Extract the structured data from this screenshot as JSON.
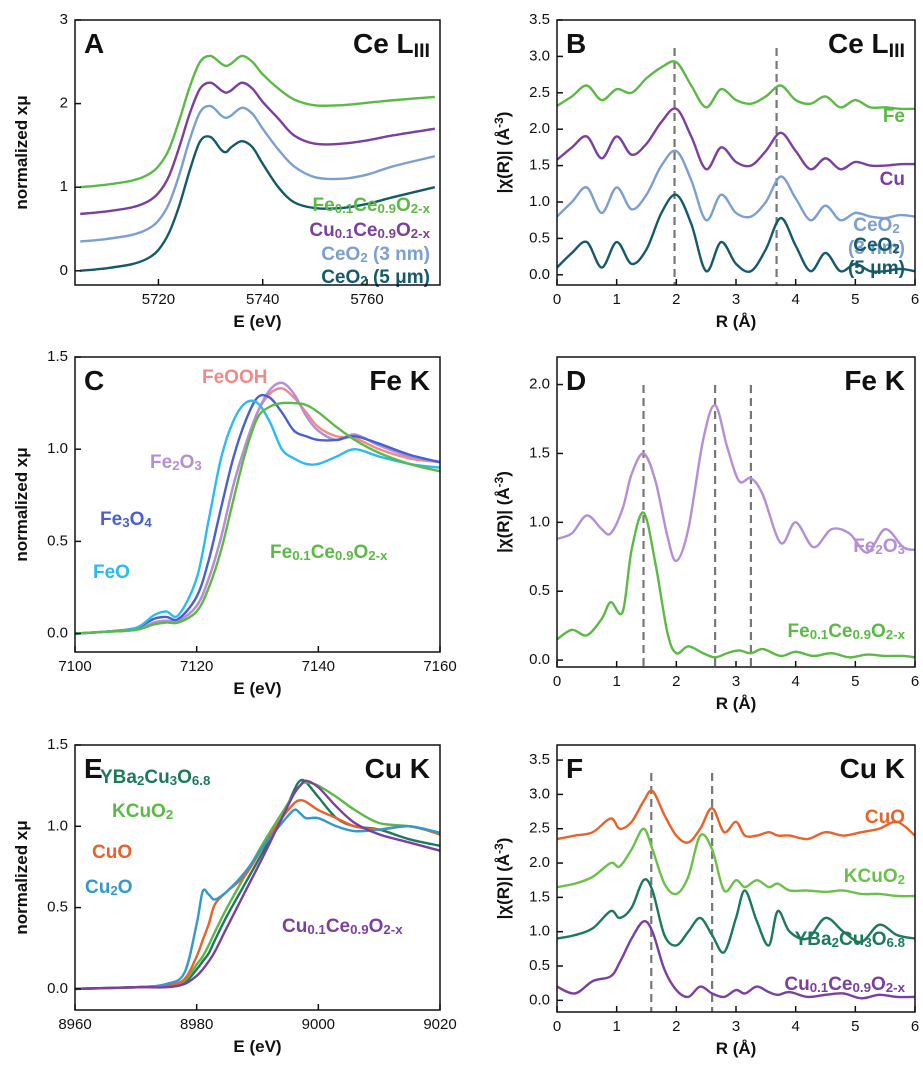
{
  "chart_data": [
    {
      "type": "line",
      "panel_label": "A",
      "title": "Ce LIII",
      "xlabel": "E (eV)",
      "ylabel": "normalized xμ",
      "xlim": [
        5704,
        5774
      ],
      "xticks": [
        5720,
        5740,
        5760
      ],
      "ylim": [
        -0.17,
        3
      ],
      "yticks": [
        0,
        1,
        2,
        3
      ],
      "x": [
        5705,
        5710,
        5715,
        5718,
        5720,
        5722,
        5724,
        5726,
        5728,
        5730,
        5732,
        5733,
        5734,
        5736,
        5738,
        5740,
        5743,
        5746,
        5750,
        5755,
        5760,
        5765,
        5773
      ],
      "series": [
        {
          "name": "Fe0.1Ce0.9O2-x",
          "color": "#5cb946",
          "values": [
            1.0,
            1.03,
            1.08,
            1.15,
            1.25,
            1.45,
            1.8,
            2.2,
            2.5,
            2.57,
            2.48,
            2.45,
            2.48,
            2.57,
            2.5,
            2.35,
            2.18,
            2.05,
            1.98,
            1.98,
            2.01,
            2.04,
            2.08
          ]
        },
        {
          "name": "Cu0.1Ce0.9O2-x",
          "color": "#7b3fa0",
          "values": [
            0.68,
            0.71,
            0.76,
            0.83,
            0.93,
            1.13,
            1.48,
            1.88,
            2.18,
            2.25,
            2.16,
            2.13,
            2.16,
            2.25,
            2.18,
            2.02,
            1.82,
            1.62,
            1.52,
            1.52,
            1.56,
            1.62,
            1.7
          ]
        },
        {
          "name": "CeO2 (3 nm)",
          "color": "#7b9fd0",
          "values": [
            0.35,
            0.38,
            0.43,
            0.5,
            0.6,
            0.8,
            1.15,
            1.57,
            1.9,
            1.97,
            1.86,
            1.83,
            1.86,
            1.95,
            1.88,
            1.7,
            1.45,
            1.25,
            1.12,
            1.1,
            1.15,
            1.25,
            1.37
          ]
        },
        {
          "name": "CeO2 (5 μm)",
          "color": "#155a6a",
          "values": [
            0.0,
            0.03,
            0.08,
            0.15,
            0.25,
            0.45,
            0.78,
            1.2,
            1.55,
            1.6,
            1.45,
            1.42,
            1.48,
            1.55,
            1.48,
            1.28,
            1.0,
            0.82,
            0.75,
            0.75,
            0.8,
            0.88,
            1.0
          ]
        }
      ]
    },
    {
      "type": "line",
      "panel_label": "B",
      "title": "Ce LIII",
      "xlabel": "R (Å)",
      "ylabel": "|χ(R)| (Å-3)",
      "xlim": [
        0,
        6
      ],
      "xticks": [
        0,
        1,
        2,
        3,
        4,
        5,
        6
      ],
      "ylim": [
        -0.14,
        3.5
      ],
      "yticks": [
        {
          "value": 0,
          "label": "0.0"
        },
        0.5,
        {
          "value": 1,
          "label": "1.0"
        },
        1.5,
        {
          "value": 2,
          "label": "2.0"
        },
        2.5,
        {
          "value": 3,
          "label": "3.0"
        },
        3.5
      ],
      "reference_lines": [
        1.97,
        3.68
      ],
      "x": [
        0,
        0.25,
        0.5,
        0.75,
        1,
        1.25,
        1.5,
        1.75,
        2,
        2.25,
        2.5,
        2.75,
        3,
        3.25,
        3.5,
        3.75,
        4,
        4.25,
        4.5,
        4.75,
        5,
        5.25,
        5.5,
        5.75,
        6
      ],
      "series": [
        {
          "name": "Fe",
          "color": "#5cb946",
          "values": [
            2.32,
            2.45,
            2.6,
            2.4,
            2.55,
            2.5,
            2.7,
            2.85,
            2.92,
            2.6,
            2.3,
            2.55,
            2.4,
            2.35,
            2.45,
            2.6,
            2.4,
            2.35,
            2.45,
            2.3,
            2.4,
            2.3,
            2.3,
            2.28,
            2.28
          ]
        },
        {
          "name": "Cu",
          "color": "#7b3fa0",
          "values": [
            1.58,
            1.75,
            1.9,
            1.6,
            1.9,
            1.65,
            1.8,
            2.1,
            2.28,
            1.9,
            1.45,
            1.75,
            1.55,
            1.5,
            1.7,
            1.95,
            1.7,
            1.45,
            1.6,
            1.45,
            1.55,
            1.5,
            1.5,
            1.52,
            1.52
          ]
        },
        {
          "name": "CeO2 (3 nm)",
          "color": "#7b9fd0",
          "values": [
            0.8,
            1.0,
            1.2,
            0.85,
            1.2,
            0.9,
            1.1,
            1.5,
            1.7,
            1.3,
            0.75,
            1.1,
            0.85,
            0.8,
            1.0,
            1.35,
            1.05,
            0.75,
            0.95,
            0.75,
            0.85,
            0.8,
            0.78,
            0.82,
            0.8
          ]
        },
        {
          "name": "CeO2 (5 μm)",
          "color": "#155a6a",
          "values": [
            0.1,
            0.3,
            0.45,
            0.1,
            0.45,
            0.15,
            0.35,
            0.85,
            1.1,
            0.7,
            0.05,
            0.45,
            0.15,
            0.05,
            0.35,
            0.78,
            0.4,
            0.05,
            0.3,
            0.05,
            0.15,
            0.05,
            0.05,
            0.08,
            0.05
          ]
        }
      ]
    },
    {
      "type": "line",
      "panel_label": "C",
      "title": "Fe K",
      "xlabel": "E (eV)",
      "ylabel": "normalized xμ",
      "xlim": [
        7100,
        7160
      ],
      "xticks": [
        7100,
        7120,
        7140,
        7160
      ],
      "ylim": [
        -0.1,
        1.5
      ],
      "yticks": [
        {
          "value": 0,
          "label": "0.0"
        },
        0.5,
        {
          "value": 1,
          "label": "1.0"
        },
        1.5
      ],
      "x": [
        7100,
        7105,
        7110,
        7113,
        7115,
        7117,
        7120,
        7122,
        7124,
        7126,
        7128,
        7130,
        7132,
        7134,
        7136,
        7138,
        7140,
        7143,
        7146,
        7150,
        7155,
        7160
      ],
      "series": [
        {
          "name": "FeOOH",
          "color": "#f08a8a",
          "values": [
            0,
            0.01,
            0.02,
            0.06,
            0.07,
            0.07,
            0.15,
            0.3,
            0.52,
            0.8,
            1.02,
            1.2,
            1.3,
            1.33,
            1.28,
            1.2,
            1.12,
            1.07,
            1.06,
            1.0,
            0.95,
            0.93
          ]
        },
        {
          "name": "Fe2O3",
          "color": "#b38fd6",
          "values": [
            0,
            0.01,
            0.02,
            0.06,
            0.07,
            0.07,
            0.15,
            0.3,
            0.52,
            0.8,
            1.02,
            1.2,
            1.32,
            1.36,
            1.3,
            1.18,
            1.1,
            1.05,
            1.08,
            1.02,
            0.96,
            0.93
          ]
        },
        {
          "name": "Fe3O4",
          "color": "#4a5fd0",
          "values": [
            0,
            0.01,
            0.03,
            0.08,
            0.09,
            0.08,
            0.2,
            0.4,
            0.68,
            0.95,
            1.15,
            1.28,
            1.28,
            1.2,
            1.1,
            1.07,
            1.05,
            1.05,
            1.07,
            1.03,
            0.97,
            0.93
          ]
        },
        {
          "name": "FeO",
          "color": "#2bbbf0",
          "values": [
            0,
            0.01,
            0.03,
            0.1,
            0.12,
            0.1,
            0.3,
            0.62,
            0.95,
            1.15,
            1.25,
            1.25,
            1.15,
            1.0,
            0.95,
            0.92,
            0.92,
            0.96,
            1.0,
            0.96,
            0.92,
            0.9
          ]
        },
        {
          "name": "Fe0.1Ce0.9O2-x",
          "color": "#5cb946",
          "values": [
            0,
            0.01,
            0.02,
            0.05,
            0.06,
            0.06,
            0.12,
            0.25,
            0.45,
            0.72,
            0.98,
            1.17,
            1.23,
            1.25,
            1.25,
            1.24,
            1.2,
            1.12,
            1.05,
            0.98,
            0.92,
            0.88
          ]
        }
      ]
    },
    {
      "type": "line",
      "panel_label": "D",
      "title": "Fe K",
      "xlabel": "R (Å)",
      "ylabel": "|χ(R)| (Å-3)",
      "xlim": [
        0,
        6
      ],
      "xticks": [
        0,
        1,
        2,
        3,
        4,
        5,
        6
      ],
      "ylim": [
        -0.05,
        2.2
      ],
      "yticks": [
        {
          "value": 0,
          "label": "0.0"
        },
        0.5,
        {
          "value": 1,
          "label": "1.0"
        },
        1.5,
        {
          "value": 2,
          "label": "2.0"
        }
      ],
      "reference_lines": [
        1.45,
        2.65,
        3.25
      ],
      "x": [
        0,
        0.25,
        0.5,
        0.75,
        0.9,
        1.1,
        1.25,
        1.45,
        1.65,
        1.85,
        2.0,
        2.2,
        2.45,
        2.65,
        2.85,
        3.05,
        3.25,
        3.45,
        3.75,
        4.0,
        4.3,
        4.6,
        4.9,
        5.2,
        5.5,
        5.8,
        6.0
      ],
      "series": [
        {
          "name": "Fe2O3",
          "color": "#b38fd6",
          "values": [
            0.88,
            0.92,
            1.05,
            0.95,
            0.92,
            1.1,
            1.35,
            1.5,
            1.3,
            0.9,
            0.72,
            0.95,
            1.6,
            1.85,
            1.55,
            1.3,
            1.32,
            1.2,
            0.85,
            1.0,
            0.82,
            0.95,
            0.92,
            0.78,
            0.95,
            0.82,
            0.8
          ]
        },
        {
          "name": "Fe0.1Ce0.9O2-x",
          "color": "#5cb946",
          "values": [
            0.15,
            0.22,
            0.18,
            0.3,
            0.42,
            0.35,
            0.8,
            1.07,
            0.7,
            0.2,
            0.05,
            0.1,
            0.05,
            0.02,
            0.05,
            0.07,
            0.05,
            0.08,
            0.03,
            0.06,
            0.03,
            0.05,
            0.02,
            0.04,
            0.03,
            0.03,
            0.02
          ]
        }
      ]
    },
    {
      "type": "line",
      "panel_label": "E",
      "title": "Cu K",
      "xlabel": "E (eV)",
      "ylabel": "normalized xμ",
      "xlim": [
        8960,
        9020
      ],
      "xticks": [
        8960,
        8980,
        9000,
        9020
      ],
      "ylim": [
        -0.13,
        1.5
      ],
      "yticks": [
        {
          "value": 0,
          "label": "0.0"
        },
        0.5,
        {
          "value": 1,
          "label": "1.0"
        },
        1.5
      ],
      "x": [
        8960,
        8970,
        8975,
        8978,
        8980,
        8981,
        8982,
        8983,
        8985,
        8988,
        8991,
        8994,
        8996,
        8997,
        8998,
        9000,
        9003,
        9006,
        9010,
        9015,
        9020
      ],
      "series": [
        {
          "name": "YBa2Cu3O6.8",
          "color": "#1a7a5a",
          "values": [
            0,
            0.01,
            0.02,
            0.04,
            0.12,
            0.17,
            0.22,
            0.3,
            0.45,
            0.65,
            0.85,
            1.05,
            1.22,
            1.28,
            1.27,
            1.18,
            1.05,
            1.0,
            0.98,
            0.92,
            0.88
          ]
        },
        {
          "name": "KCuO2",
          "color": "#5cb946",
          "values": [
            0,
            0.01,
            0.02,
            0.05,
            0.15,
            0.2,
            0.27,
            0.35,
            0.5,
            0.7,
            0.9,
            1.08,
            1.2,
            1.25,
            1.27,
            1.25,
            1.18,
            1.1,
            1.02,
            1.0,
            0.96
          ]
        },
        {
          "name": "CuO",
          "color": "#e8622a",
          "values": [
            0,
            0.01,
            0.02,
            0.06,
            0.2,
            0.3,
            0.4,
            0.52,
            0.6,
            0.7,
            0.88,
            1.05,
            1.14,
            1.16,
            1.15,
            1.1,
            1.05,
            1.0,
            0.98,
            1.0,
            0.95
          ]
        },
        {
          "name": "Cu2O",
          "color": "#3399cc",
          "values": [
            0,
            0.01,
            0.03,
            0.1,
            0.4,
            0.6,
            0.58,
            0.55,
            0.6,
            0.72,
            0.88,
            1.02,
            1.1,
            1.08,
            1.05,
            1.05,
            1.0,
            0.97,
            0.98,
            1.0,
            0.96
          ]
        },
        {
          "name": "Cu0.1Ce0.9O2-x",
          "color": "#7b3fa0",
          "values": [
            0,
            0.01,
            0.01,
            0.03,
            0.08,
            0.12,
            0.17,
            0.23,
            0.38,
            0.6,
            0.82,
            1.05,
            1.2,
            1.25,
            1.28,
            1.24,
            1.12,
            1.02,
            0.95,
            0.9,
            0.85
          ]
        }
      ]
    },
    {
      "type": "line",
      "panel_label": "F",
      "title": "Cu K",
      "xlabel": "R (Å)",
      "ylabel": "|χ(R)| (Å-3)",
      "xlim": [
        0,
        6
      ],
      "xticks": [
        0,
        1,
        2,
        3,
        4,
        5,
        6
      ],
      "ylim": [
        -0.17,
        3.72
      ],
      "yticks": [
        {
          "value": 0,
          "label": "0.0"
        },
        0.5,
        {
          "value": 1,
          "label": "1.0"
        },
        1.5,
        {
          "value": 2,
          "label": "2.0"
        },
        2.5,
        {
          "value": 3,
          "label": "3.0"
        },
        3.5
      ],
      "reference_lines": [
        1.58,
        2.6
      ],
      "x": [
        0,
        0.3,
        0.6,
        0.9,
        1.05,
        1.25,
        1.45,
        1.6,
        1.8,
        2.0,
        2.2,
        2.4,
        2.6,
        2.8,
        3.0,
        3.15,
        3.35,
        3.55,
        3.7,
        3.9,
        4.2,
        4.5,
        4.8,
        5.1,
        5.4,
        5.7,
        6.0
      ],
      "series": [
        {
          "name": "CuO",
          "color": "#e8622a",
          "values": [
            2.35,
            2.4,
            2.45,
            2.65,
            2.5,
            2.6,
            2.9,
            3.05,
            2.7,
            2.4,
            2.3,
            2.5,
            2.8,
            2.45,
            2.6,
            2.4,
            2.4,
            2.45,
            2.4,
            2.4,
            2.35,
            2.45,
            2.4,
            2.45,
            2.5,
            2.6,
            2.4
          ]
        },
        {
          "name": "KCuO2",
          "color": "#6cc04a",
          "values": [
            1.65,
            1.7,
            1.8,
            2.0,
            1.95,
            2.2,
            2.5,
            2.2,
            1.7,
            1.55,
            1.8,
            2.4,
            2.2,
            1.6,
            1.75,
            1.65,
            1.75,
            1.65,
            1.7,
            1.6,
            1.6,
            1.58,
            1.6,
            1.55,
            1.55,
            1.52,
            1.52
          ]
        },
        {
          "name": "YBa2Cu3O6.8",
          "color": "#1a7a5a",
          "values": [
            0.9,
            0.95,
            1.05,
            1.3,
            1.2,
            1.35,
            1.75,
            1.6,
            0.95,
            0.8,
            1.0,
            1.2,
            0.95,
            0.7,
            1.2,
            1.6,
            1.15,
            0.8,
            1.3,
            1.0,
            0.9,
            1.2,
            1.0,
            0.85,
            1.1,
            0.95,
            0.9
          ]
        },
        {
          "name": "Cu0.1Ce0.9O2-x",
          "color": "#7b3fa0",
          "values": [
            0.2,
            0.1,
            0.28,
            0.35,
            0.55,
            0.9,
            1.15,
            1.0,
            0.45,
            0.15,
            0.05,
            0.2,
            0.1,
            0.05,
            0.15,
            0.1,
            0.2,
            0.12,
            0.08,
            0.12,
            0.05,
            0.08,
            0.1,
            0.03,
            0.08,
            0.05,
            0.05
          ]
        }
      ]
    }
  ]
}
